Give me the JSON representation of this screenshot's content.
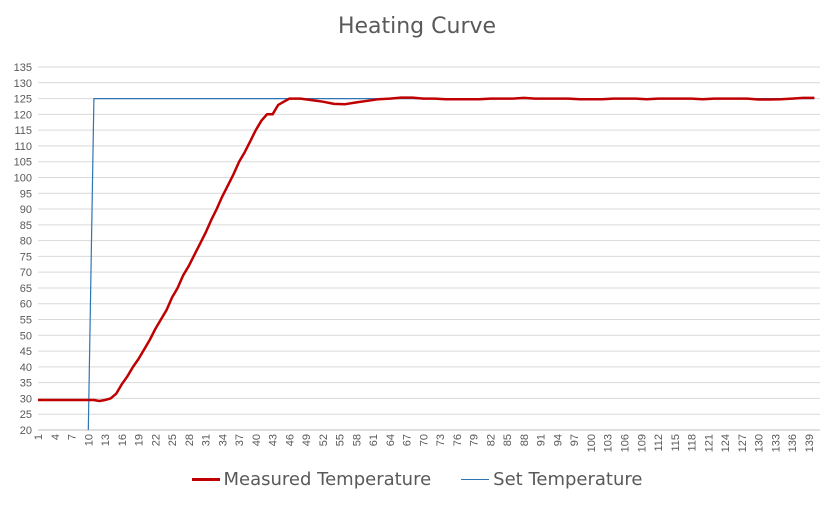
{
  "chart_data": {
    "type": "line",
    "title": "Heating Curve",
    "xlabel": "",
    "ylabel": "",
    "ylim": [
      20,
      135
    ],
    "ystep": 5,
    "x_tick_labels": [
      "1",
      "4",
      "7",
      "10",
      "13",
      "16",
      "19",
      "22",
      "25",
      "28",
      "31",
      "34",
      "37",
      "40",
      "43",
      "46",
      "49",
      "52",
      "55",
      "58",
      "61",
      "64",
      "67",
      "70",
      "73",
      "76",
      "79",
      "82",
      "85",
      "88",
      "91",
      "94",
      "97",
      "100",
      "103",
      "106",
      "109",
      "112",
      "115",
      "118",
      "121",
      "124",
      "127",
      "130",
      "133",
      "136",
      "139"
    ],
    "series": [
      {
        "name": "Measured Temperature",
        "color": "#c00000",
        "x": [
          1,
          3,
          5,
          7,
          9,
          10,
          11,
          12,
          13,
          14,
          15,
          16,
          17,
          18,
          19,
          20,
          21,
          22,
          23,
          24,
          25,
          26,
          27,
          28,
          29,
          30,
          31,
          32,
          33,
          34,
          35,
          36,
          37,
          38,
          39,
          40,
          41,
          42,
          43,
          44,
          45,
          46,
          47,
          48,
          50,
          52,
          54,
          56,
          58,
          60,
          62,
          64,
          66,
          68,
          70,
          72,
          74,
          76,
          78,
          80,
          82,
          84,
          86,
          88,
          90,
          92,
          94,
          96,
          98,
          100,
          102,
          104,
          106,
          108,
          110,
          112,
          114,
          116,
          118,
          120,
          122,
          124,
          126,
          128,
          130,
          132,
          134,
          136,
          138,
          140
        ],
        "values": [
          29.5,
          29.5,
          29.5,
          29.5,
          29.5,
          29.5,
          29.5,
          29.2,
          29.5,
          30,
          31.5,
          34.5,
          37,
          40,
          42.5,
          45.5,
          48.5,
          52,
          55,
          58,
          62,
          65,
          69,
          72,
          75.5,
          79,
          82.5,
          86.5,
          90,
          94,
          97.5,
          101,
          105,
          108,
          111.5,
          115,
          118,
          120,
          120,
          123,
          124,
          125,
          125,
          125,
          124.5,
          124,
          123.3,
          123.2,
          123.8,
          124.3,
          124.8,
          125,
          125.3,
          125.3,
          125,
          125,
          124.8,
          124.8,
          124.8,
          124.8,
          125,
          125,
          125,
          125.2,
          125,
          125,
          125,
          125,
          124.8,
          124.8,
          124.8,
          125,
          125,
          125,
          124.8,
          125,
          125,
          125,
          125,
          124.8,
          125,
          125,
          125,
          125,
          124.7,
          124.7,
          124.8,
          125,
          125.2,
          125.2
        ]
      },
      {
        "name": "Set Temperature",
        "color": "#2e75b6",
        "x": [
          10,
          11,
          140
        ],
        "values": [
          20,
          125,
          125
        ]
      }
    ],
    "legend": "bottom-center"
  }
}
